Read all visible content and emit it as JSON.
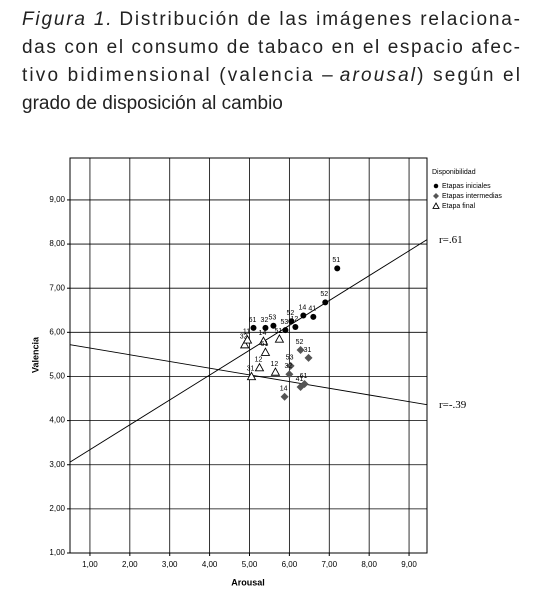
{
  "figure_caption": {
    "label": "Figura 1.",
    "lines": [
      [
        "Distribución de las imágenes relaciona-"
      ],
      [
        "das con el consumo de tabaco en el espacio afec-"
      ],
      [
        "tivo bidimensional (valencia –",
        "arousal",
        ") según el"
      ],
      [
        "grado de disposición al cambio"
      ]
    ]
  },
  "chart_data": {
    "type": "scatter",
    "xlabel": "Arousal",
    "ylabel": "Valencia",
    "xlim": [
      0.5,
      9.45
    ],
    "ylim": [
      1,
      9.95
    ],
    "xticks": [
      {
        "value": 1,
        "label": "1,00"
      },
      {
        "value": 2,
        "label": "2,00"
      },
      {
        "value": 3,
        "label": "3,00"
      },
      {
        "value": 4,
        "label": "4,00"
      },
      {
        "value": 5,
        "label": "5,00"
      },
      {
        "value": 6,
        "label": "6,00"
      },
      {
        "value": 7,
        "label": "7,00"
      },
      {
        "value": 8,
        "label": "8,00"
      },
      {
        "value": 9,
        "label": "9,00"
      }
    ],
    "yticks": [
      {
        "value": 1,
        "label": "1,00"
      },
      {
        "value": 2,
        "label": "2,00"
      },
      {
        "value": 3,
        "label": "3,00"
      },
      {
        "value": 4,
        "label": "4,00"
      },
      {
        "value": 5,
        "label": "5,00"
      },
      {
        "value": 6,
        "label": "6,00"
      },
      {
        "value": 7,
        "label": "7,00"
      },
      {
        "value": 8,
        "label": "8,00"
      },
      {
        "value": 9,
        "label": "9,00"
      }
    ],
    "grid": true,
    "legend_title": "Disponibilidad",
    "legend": "right",
    "series": [
      {
        "name": "Etapas iniciales",
        "color": "#000000",
        "marker": "circle",
        "x": [
          7.2,
          6.9,
          6.35,
          6.6,
          5.6,
          5.1,
          5.4,
          6.05,
          5.9,
          6.15
        ],
        "y": [
          7.45,
          6.68,
          6.38,
          6.35,
          6.15,
          6.1,
          6.1,
          6.25,
          6.05,
          6.12
        ],
        "labels": [
          "51",
          "52",
          "14",
          "41",
          "53",
          "61",
          "32",
          "52",
          "53",
          "12"
        ]
      },
      {
        "name": "Etapas intermedias",
        "color": "#555555",
        "marker": "diamond",
        "x": [
          6.28,
          6.48,
          6.03,
          6.38,
          6.28,
          5.88,
          6.0
        ],
        "y": [
          5.6,
          5.42,
          5.24,
          4.83,
          4.76,
          4.54,
          5.05
        ],
        "labels": [
          "52",
          "31",
          "53",
          "61",
          "41",
          "14",
          "32"
        ]
      },
      {
        "name": "Etapa final",
        "color": "#000000",
        "marker": "triangle",
        "x": [
          4.88,
          4.95,
          5.35,
          5.75,
          5.4,
          5.25,
          5.05,
          5.65
        ],
        "y": [
          5.72,
          5.83,
          5.8,
          5.85,
          5.55,
          5.2,
          5.0,
          5.1
        ],
        "labels": [
          "32",
          "11",
          "14",
          "51",
          "61",
          "12",
          "31",
          "12"
        ]
      }
    ],
    "fit_lines": [
      {
        "label": "r=.61",
        "x": [
          0.5,
          9.45
        ],
        "y": [
          3.06,
          8.1
        ]
      },
      {
        "label": "r=-.39",
        "x": [
          0.5,
          9.45
        ],
        "y": [
          5.72,
          4.36
        ]
      }
    ]
  }
}
